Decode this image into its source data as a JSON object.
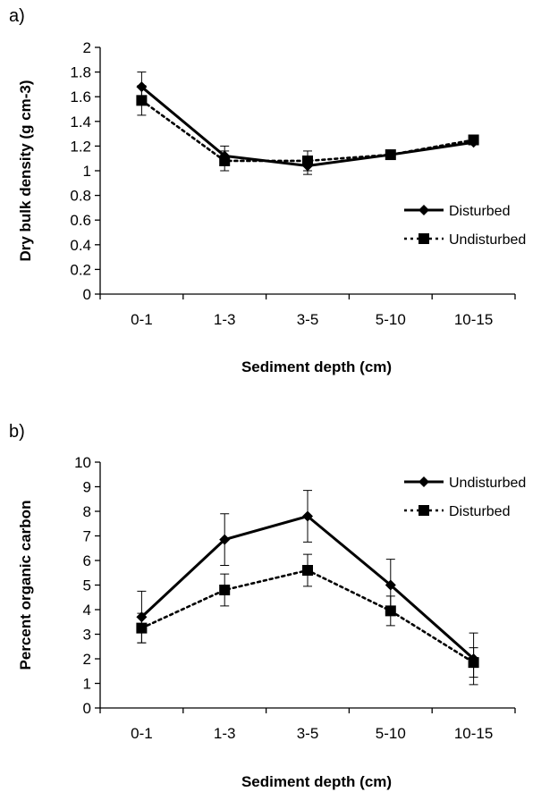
{
  "chart_data": [
    {
      "panel_label": "a)",
      "type": "line",
      "xlabel": "Sediment depth (cm)",
      "ylabel": "Dry bulk density (g cm-3)",
      "categories": [
        "0-1",
        "1-3",
        "3-5",
        "5-10",
        "10-15"
      ],
      "ylim": [
        0,
        2
      ],
      "yticks": [
        "0",
        "0.2",
        "0.4",
        "0.6",
        "0.8",
        "1",
        "1.2",
        "1.4",
        "1.6",
        "1.8",
        "2"
      ],
      "grid": false,
      "legend_position": "right",
      "series": [
        {
          "name": "Disturbed",
          "style": "solid",
          "marker": "diamond",
          "values": [
            1.68,
            1.12,
            1.04,
            1.13,
            1.23
          ],
          "errors": [
            0.12,
            0.08,
            0.07,
            0.02,
            0.02
          ]
        },
        {
          "name": "Undisturbed",
          "style": "dotted",
          "marker": "square",
          "values": [
            1.57,
            1.08,
            1.08,
            1.13,
            1.25
          ],
          "errors": [
            0.12,
            0.08,
            0.08,
            0.02,
            0.02
          ]
        }
      ]
    },
    {
      "panel_label": "b)",
      "type": "line",
      "xlabel": "Sediment depth (cm)",
      "ylabel": "Percent organic carbon",
      "categories": [
        "0-1",
        "1-3",
        "3-5",
        "5-10",
        "10-15"
      ],
      "ylim": [
        0,
        10
      ],
      "yticks": [
        "0",
        "1",
        "2",
        "3",
        "4",
        "5",
        "6",
        "7",
        "8",
        "9",
        "10"
      ],
      "grid": false,
      "legend_position": "top-right",
      "series": [
        {
          "name": "Undisturbed",
          "style": "solid",
          "marker": "diamond",
          "values": [
            3.7,
            6.85,
            7.8,
            5.0,
            2.0
          ],
          "errors": [
            1.05,
            1.05,
            1.05,
            1.05,
            1.05
          ]
        },
        {
          "name": "Disturbed",
          "style": "dotted",
          "marker": "square",
          "values": [
            3.25,
            4.8,
            5.6,
            3.95,
            1.85
          ],
          "errors": [
            0.6,
            0.65,
            0.65,
            0.6,
            0.6
          ]
        }
      ]
    }
  ]
}
